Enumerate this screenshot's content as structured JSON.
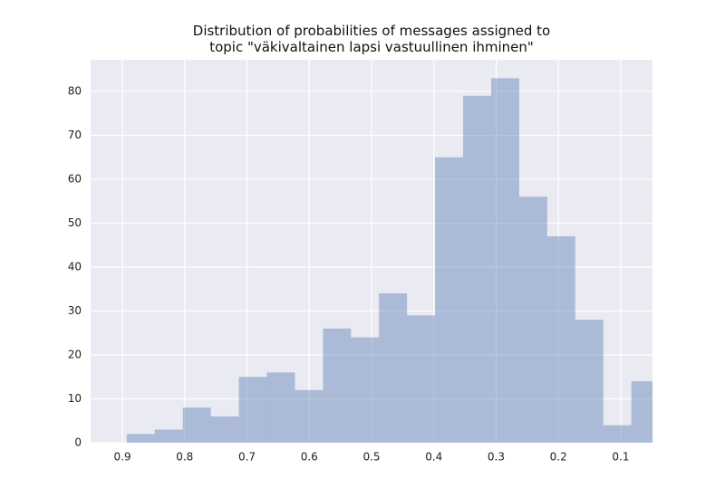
{
  "chart_data": {
    "type": "histogram",
    "title": "Distribution of probabilities of messages assigned to\ntopic \"väkivaltainen lapsi vastuullinen ihminen\"",
    "bins": [
      0.038,
      0.083,
      0.128,
      0.173,
      0.218,
      0.263,
      0.308,
      0.353,
      0.398,
      0.443,
      0.488,
      0.533,
      0.578,
      0.623,
      0.668,
      0.713,
      0.758,
      0.803,
      0.848,
      0.893
    ],
    "values": [
      14,
      4,
      28,
      47,
      56,
      83,
      79,
      65,
      29,
      34,
      24,
      26,
      12,
      16,
      15,
      6,
      8,
      3,
      2
    ],
    "color": "#4c72b0",
    "opacity": 0.4,
    "xlim": [
      0.951,
      0.049
    ],
    "xticks": [
      0.9,
      0.8,
      0.7,
      0.6,
      0.5,
      0.4,
      0.3,
      0.2,
      0.1
    ],
    "ylim": [
      0,
      87.2
    ],
    "yticks": [
      0,
      10,
      20,
      30,
      40,
      50,
      60,
      70,
      80
    ],
    "grid": true
  }
}
